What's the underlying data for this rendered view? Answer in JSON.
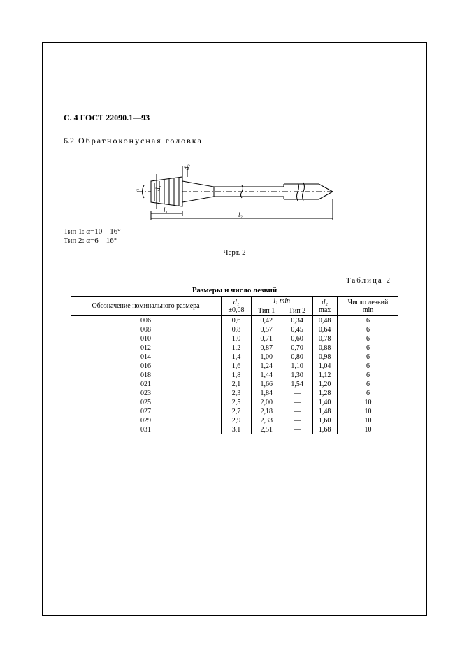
{
  "page_header": "С. 4 ГОСТ 22090.1—93",
  "section": {
    "number": "6.2.",
    "title": "Обратноконусная головка"
  },
  "diagram": {
    "labels": {
      "d1": "d₁",
      "d2": "d₂",
      "l1": "l₁",
      "l2": "l₂",
      "alpha": "α"
    },
    "colors": {
      "stroke": "#000000",
      "hatch": "#000000",
      "bg": "#ffffff"
    }
  },
  "type_lines": {
    "line1": "Тип 1: α=10—16°",
    "line2": "Тип 2: α=6—16°"
  },
  "figure_caption": "Черт. 2",
  "table": {
    "label": "Таблица 2",
    "title": "Размеры и число лезвий",
    "columns": {
      "col1": "Обозначение номинального размера",
      "col2_top": "d₁",
      "col2_bot": "±0,08",
      "col3_group": "l₁ min",
      "col3a": "Тип 1",
      "col3b": "Тип 2",
      "col4_top": "d₂",
      "col4_bot": "max",
      "col5_top": "Число лезвий",
      "col5_bot": "min"
    },
    "rows": [
      {
        "code": "006",
        "d1": "0,6",
        "t1": "0,42",
        "t2": "0,34",
        "d2": "0,48",
        "blades": "6"
      },
      {
        "code": "008",
        "d1": "0,8",
        "t1": "0,57",
        "t2": "0,45",
        "d2": "0,64",
        "blades": "6"
      },
      {
        "code": "010",
        "d1": "1,0",
        "t1": "0,71",
        "t2": "0,60",
        "d2": "0,78",
        "blades": "6"
      },
      {
        "code": "012",
        "d1": "1,2",
        "t1": "0,87",
        "t2": "0,70",
        "d2": "0,88",
        "blades": "6"
      },
      {
        "code": "014",
        "d1": "1,4",
        "t1": "1,00",
        "t2": "0,80",
        "d2": "0,98",
        "blades": "6"
      },
      {
        "code": "016",
        "d1": "1,6",
        "t1": "1,24",
        "t2": "1,10",
        "d2": "1,04",
        "blades": "6"
      },
      {
        "code": "018",
        "d1": "1,8",
        "t1": "1,44",
        "t2": "1,30",
        "d2": "1,12",
        "blades": "6"
      },
      {
        "code": "021",
        "d1": "2,1",
        "t1": "1,66",
        "t2": "1,54",
        "d2": "1,20",
        "blades": "6"
      },
      {
        "code": "023",
        "d1": "2,3",
        "t1": "1,84",
        "t2": "—",
        "d2": "1,28",
        "blades": "6"
      },
      {
        "code": "025",
        "d1": "2,5",
        "t1": "2,00",
        "t2": "—",
        "d2": "1,40",
        "blades": "10"
      },
      {
        "code": "027",
        "d1": "2,7",
        "t1": "2,18",
        "t2": "—",
        "d2": "1,48",
        "blades": "10"
      },
      {
        "code": "029",
        "d1": "2,9",
        "t1": "2,33",
        "t2": "—",
        "d2": "1,60",
        "blades": "10"
      },
      {
        "code": "031",
        "d1": "3,1",
        "t1": "2,51",
        "t2": "—",
        "d2": "1,68",
        "blades": "10"
      }
    ]
  }
}
